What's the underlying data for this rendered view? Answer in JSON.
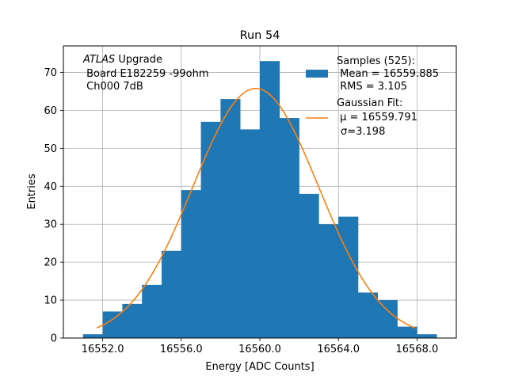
{
  "chart_data": {
    "type": "bar",
    "title": "Run 54",
    "xlabel": "Energy [ADC Counts]",
    "ylabel": "Entries",
    "xlim": [
      16550.0,
      16570.0
    ],
    "ylim": [
      0,
      77
    ],
    "xticks": [
      16552.0,
      16556.0,
      16560.0,
      16564.0,
      16568.0
    ],
    "xtick_labels": [
      "16552.0",
      "16556.0",
      "16560.0",
      "16564.0",
      "16568.0"
    ],
    "yticks": [
      0,
      10,
      20,
      30,
      40,
      50,
      60,
      70
    ],
    "ytick_labels": [
      "0",
      "10",
      "20",
      "30",
      "40",
      "50",
      "60",
      "70"
    ],
    "grid": true,
    "annotation": {
      "italic": "ATLAS",
      "line1_rest": " Upgrade",
      "line2": " Board E182259 -99ohm",
      "line3": " Ch000 7dB"
    },
    "histogram": {
      "name": "Samples (525):",
      "color": "#1f77b4",
      "bin_edges": [
        16551.0,
        16552.0,
        16553.0,
        16554.0,
        16555.0,
        16556.0,
        16557.0,
        16558.0,
        16559.0,
        16560.0,
        16561.0,
        16562.0,
        16563.0,
        16564.0,
        16565.0,
        16566.0,
        16567.0,
        16568.0,
        16569.0
      ],
      "counts": [
        1,
        7,
        9,
        14,
        23,
        39,
        57,
        63,
        55,
        73,
        58,
        38,
        30,
        32,
        12,
        10,
        3,
        1
      ]
    },
    "fit": {
      "name": "Gaussian Fit:",
      "color": "#ff7f0e",
      "mu": 16559.791,
      "sigma": 3.198,
      "amplitude": 65.8,
      "x_range": [
        16551.7,
        16567.9
      ]
    },
    "legend": {
      "placement": "top-right",
      "hist_title": "Samples (525):",
      "hist_mean": " Mean = 16559.885",
      "hist_rms": " RMS = 3.105",
      "fit_title": "Gaussian Fit:",
      "fit_mu": " μ = 16559.791",
      "fit_sigma": "σ=3.198"
    }
  }
}
